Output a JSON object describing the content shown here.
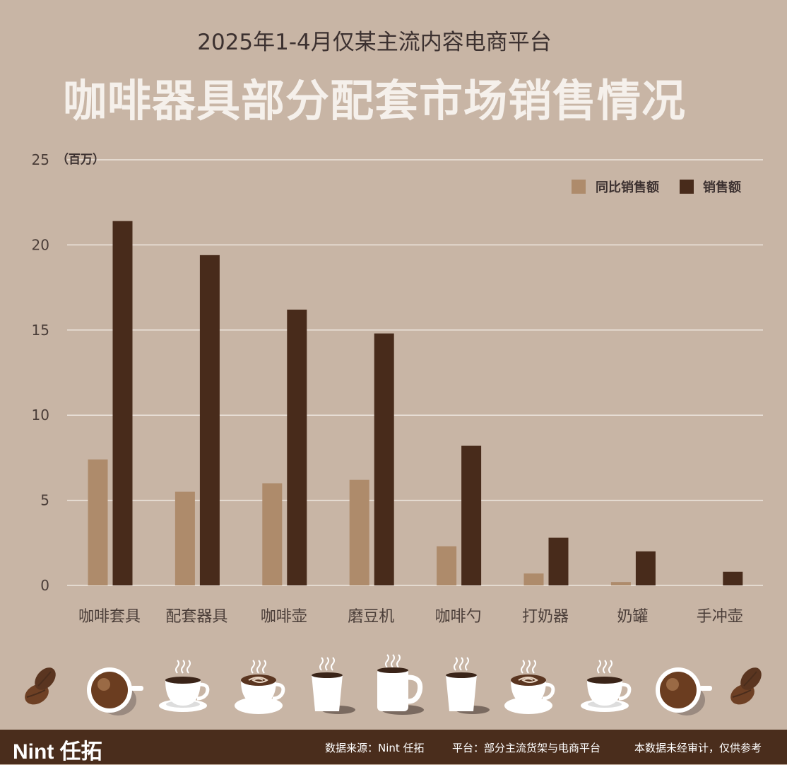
{
  "header": {
    "subtitle": "2025年1-4月仅某主流内容电商平台",
    "title": "咖啡器具部分配套市场销售情况"
  },
  "chart_data": {
    "type": "bar",
    "unit_label": "（百万）",
    "categories": [
      "咖啡套具",
      "配套器具",
      "咖啡壶",
      "磨豆机",
      "咖啡勺",
      "打奶器",
      "奶罐",
      "手冲壶"
    ],
    "series": [
      {
        "name": "同比销售额",
        "color": "#ae8b6b",
        "values": [
          7.4,
          5.5,
          6.0,
          6.2,
          2.3,
          0.7,
          0.2,
          0.0
        ]
      },
      {
        "name": "销售额",
        "color": "#482b1b",
        "values": [
          21.4,
          19.4,
          16.2,
          14.8,
          8.2,
          2.8,
          2.0,
          0.8
        ]
      }
    ],
    "yticks": [
      0,
      5,
      10,
      15,
      20,
      25
    ],
    "ylim": [
      0,
      25
    ],
    "grid": true,
    "legend": "top-right"
  },
  "icons": [
    "coffee-beans-icon",
    "espresso-cup-top-icon",
    "coffee-cup-saucer-icon",
    "latte-art-cup-icon",
    "paper-cup-icon",
    "mug-icon",
    "paper-cup-icon",
    "latte-art-cup-icon",
    "coffee-cup-saucer-icon",
    "espresso-cup-top-icon",
    "coffee-beans-icon"
  ],
  "footer": {
    "brand": "Nint 任拓",
    "source": "数据来源：Nint 任拓",
    "platform": "平台：部分主流货架与电商平台",
    "note": "本数据未经审计，仅供参考"
  }
}
